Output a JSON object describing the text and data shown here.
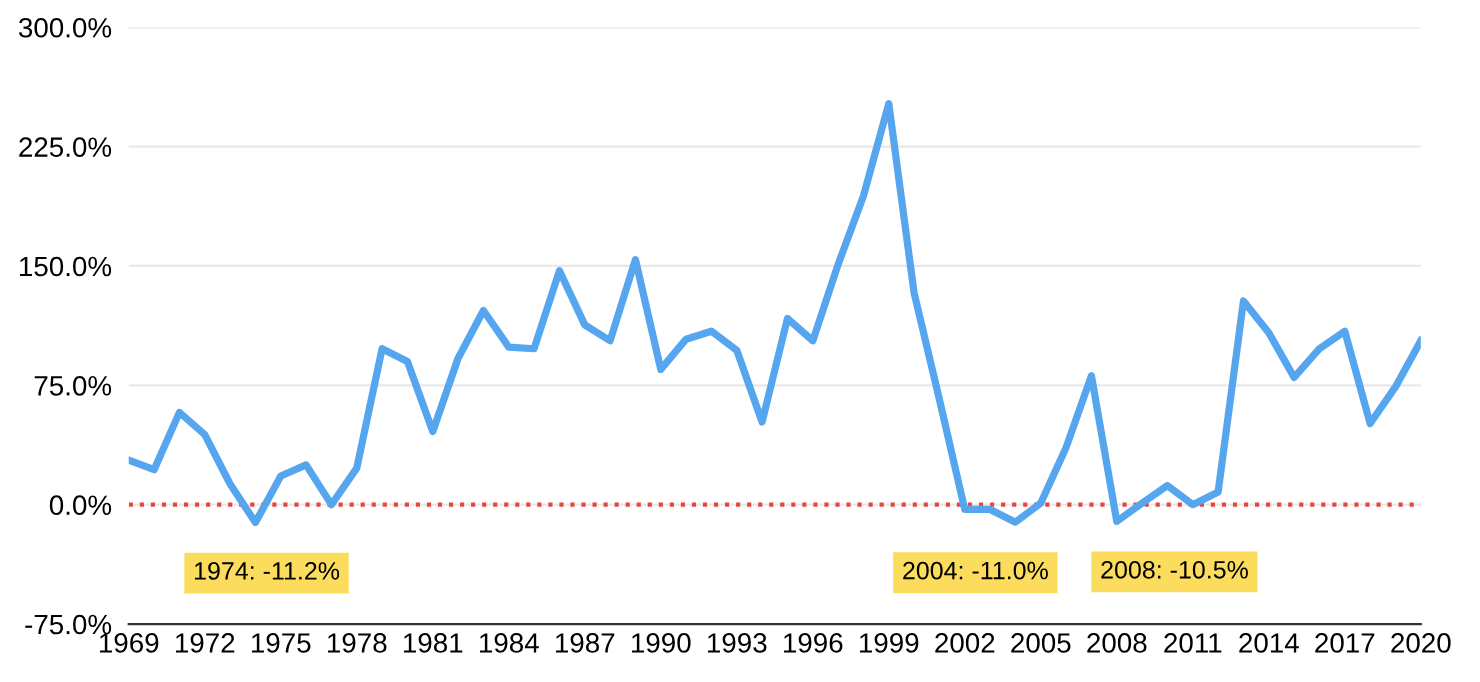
{
  "chart_data": {
    "type": "line",
    "x": [
      1969,
      1970,
      1971,
      1972,
      1973,
      1974,
      1975,
      1976,
      1977,
      1978,
      1979,
      1980,
      1981,
      1982,
      1983,
      1984,
      1985,
      1986,
      1987,
      1988,
      1989,
      1990,
      1991,
      1992,
      1993,
      1994,
      1995,
      1996,
      1997,
      1998,
      1999,
      2000,
      2001,
      2002,
      2003,
      2004,
      2005,
      2006,
      2007,
      2008,
      2009,
      2010,
      2011,
      2012,
      2013,
      2014,
      2015,
      2016,
      2017,
      2018,
      2019,
      2020
    ],
    "series": [
      {
        "color": "#55a6ee",
        "values": [
          28,
          22,
          58,
          44,
          13,
          -11.2,
          18,
          25,
          0,
          23,
          98,
          90,
          46,
          92,
          122,
          99,
          98,
          147,
          113,
          103,
          154,
          85,
          104,
          109,
          97,
          52,
          117,
          103,
          151,
          194,
          252,
          133,
          66,
          -3,
          -3,
          -11.0,
          1,
          36,
          81,
          -10.5,
          1,
          12,
          0,
          8,
          128,
          108,
          80,
          98,
          109,
          51,
          74,
          103
        ]
      }
    ],
    "xlim": [
      1969,
      2020
    ],
    "xticks": [
      1969,
      1972,
      1975,
      1978,
      1981,
      1984,
      1987,
      1990,
      1993,
      1996,
      1999,
      2002,
      2005,
      2008,
      2011,
      2014,
      2017,
      2020
    ],
    "ylim": [
      -75,
      300
    ],
    "yticks": [
      {
        "value": -75,
        "label": "-75.0%"
      },
      {
        "value": 0,
        "label": "0.0%"
      },
      {
        "value": 75,
        "label": "75.0%"
      },
      {
        "value": 150,
        "label": "150.0%"
      },
      {
        "value": 225,
        "label": "225.0%"
      },
      {
        "value": 300,
        "label": "300.0%"
      }
    ],
    "grid": "y",
    "ref_lines": [
      {
        "axis": "y",
        "value": 0,
        "color": "#e8463c",
        "line_style": "dotted"
      }
    ],
    "annotations": [
      {
        "text": "1974: -11.2%",
        "x": 1974,
        "y": -11.2
      },
      {
        "text": "2004: -11.0%",
        "x": 2004,
        "y": -11.0
      },
      {
        "text": "2008: -10.5%",
        "x": 2008,
        "y": -10.5
      }
    ]
  }
}
